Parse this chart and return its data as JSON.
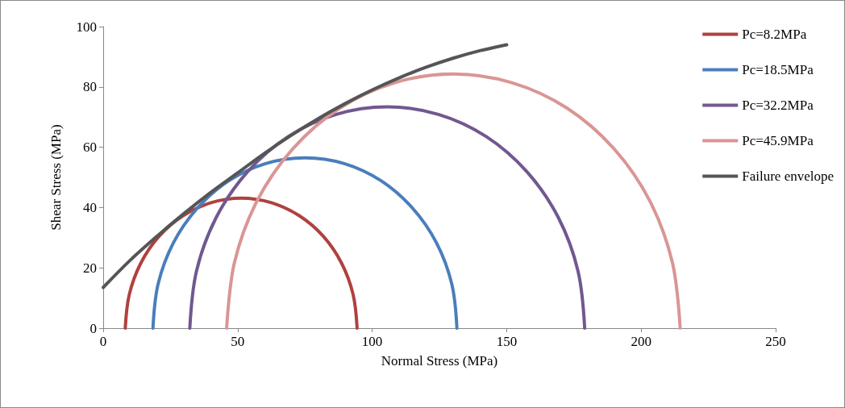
{
  "chart_data": {
    "type": "line",
    "xlabel": "Normal Stress (MPa)",
    "ylabel": "Shear Stress (MPa)",
    "xlim": [
      0,
      250
    ],
    "xticks": [
      0,
      50,
      100,
      150,
      200,
      250
    ],
    "ylim": [
      0,
      100
    ],
    "yticks": [
      0,
      20,
      40,
      60,
      80,
      100
    ],
    "grid": false,
    "legend": "right",
    "marker": "none",
    "line_style": "solid",
    "series": [
      {
        "name": "Pc=8.2MPa",
        "color": "#b0413e",
        "x": [
          94.4,
          92.9,
          88.6,
          81.8,
          72.9,
          62.5,
          51.3,
          40.1,
          29.7,
          20.8,
          14.0,
          9.7,
          8.2
        ],
        "values": [
          0,
          11.2,
          21.6,
          30.5,
          37.3,
          41.6,
          43.1,
          41.6,
          37.3,
          30.5,
          21.6,
          11.2,
          0
        ]
      },
      {
        "name": "Pc=18.5MPa",
        "color": "#4a7ebb",
        "x": [
          131.5,
          129.6,
          123.9,
          114.9,
          103.3,
          89.6,
          75,
          60.4,
          46.7,
          35.1,
          26.1,
          20.4,
          18.5
        ],
        "values": [
          0,
          14.6,
          28.3,
          39.9,
          48.9,
          54.6,
          56.5,
          54.6,
          48.9,
          39.9,
          28.3,
          14.6,
          0
        ]
      },
      {
        "name": "Pc=32.2MPa",
        "color": "#71588f",
        "x": [
          179,
          176.5,
          169.2,
          157.5,
          142.3,
          124.6,
          105.6,
          86.6,
          68.9,
          53.7,
          42.0,
          34.7,
          32.2
        ],
        "values": [
          0,
          19.0,
          36.7,
          51.9,
          63.6,
          70.9,
          73.4,
          70.9,
          63.6,
          51.9,
          36.7,
          19.0,
          0
        ]
      },
      {
        "name": "Pc=45.9MPa",
        "color": "#d99694",
        "x": [
          214.5,
          211.6,
          203.2,
          189.8,
          172.4,
          152.0,
          130.2,
          108.4,
          88.0,
          70.6,
          57.2,
          48.8,
          45.9
        ],
        "values": [
          0,
          21.8,
          42.2,
          59.6,
          73.0,
          81.4,
          84.3,
          81.4,
          73.0,
          59.6,
          42.2,
          21.8,
          0
        ]
      },
      {
        "name": "Failure envelope",
        "color": "#555555",
        "x": [
          0,
          10,
          20,
          30,
          40,
          50,
          60,
          70,
          80,
          90,
          100,
          110,
          120,
          130,
          140,
          150
        ],
        "values": [
          13.5,
          22.5,
          30.5,
          38,
          45,
          51.5,
          58,
          64,
          69.5,
          74.5,
          79,
          83,
          86.5,
          89.5,
          92,
          94
        ]
      }
    ]
  }
}
